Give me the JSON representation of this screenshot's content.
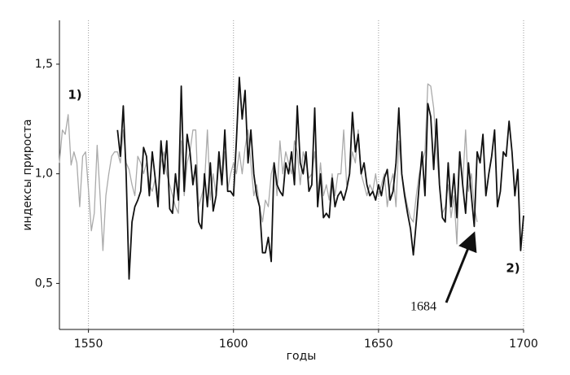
{
  "chart_data": {
    "type": "line",
    "x_label": "годы",
    "y_label": "индексы прироста",
    "x": [
      1540,
      1541,
      1542,
      1543,
      1544,
      1545,
      1546,
      1547,
      1548,
      1549,
      1550,
      1551,
      1552,
      1553,
      1554,
      1555,
      1556,
      1557,
      1558,
      1559,
      1560,
      1561,
      1562,
      1563,
      1564,
      1565,
      1566,
      1567,
      1568,
      1569,
      1570,
      1571,
      1572,
      1573,
      1574,
      1575,
      1576,
      1577,
      1578,
      1579,
      1580,
      1581,
      1582,
      1583,
      1584,
      1585,
      1586,
      1587,
      1588,
      1589,
      1590,
      1591,
      1592,
      1593,
      1594,
      1595,
      1596,
      1597,
      1598,
      1599,
      1600,
      1601,
      1602,
      1603,
      1604,
      1605,
      1606,
      1607,
      1608,
      1609,
      1610,
      1611,
      1612,
      1613,
      1614,
      1615,
      1616,
      1617,
      1618,
      1619,
      1620,
      1621,
      1622,
      1623,
      1624,
      1625,
      1626,
      1627,
      1628,
      1629,
      1630,
      1631,
      1632,
      1633,
      1634,
      1635,
      1636,
      1637,
      1638,
      1639,
      1640,
      1641,
      1642,
      1643,
      1644,
      1645,
      1646,
      1647,
      1648,
      1649,
      1650,
      1651,
      1652,
      1653,
      1654,
      1655,
      1656,
      1657,
      1658,
      1659,
      1660,
      1661,
      1662,
      1663,
      1664,
      1665,
      1666,
      1667,
      1668,
      1669,
      1670,
      1671,
      1672,
      1673,
      1674,
      1675,
      1676,
      1677,
      1678,
      1679,
      1680,
      1681,
      1682,
      1683,
      1684,
      1685,
      1686,
      1687,
      1688,
      1689,
      1690,
      1691,
      1692,
      1693,
      1694,
      1695,
      1696,
      1697,
      1698,
      1699,
      1700
    ],
    "series": [
      {
        "color": "#aaaaaa",
        "values": [
          1.05,
          1.2,
          1.18,
          1.27,
          1.04,
          1.1,
          1.05,
          0.85,
          1.08,
          1.1,
          0.93,
          0.74,
          0.82,
          1.13,
          0.9,
          0.65,
          0.9,
          1.0,
          1.08,
          1.1,
          1.1,
          1.05,
          1.2,
          1.05,
          1.02,
          0.95,
          0.9,
          1.08,
          1.05,
          1.0,
          1.05,
          0.95,
          0.92,
          0.98,
          0.9,
          1.05,
          1.1,
          1.0,
          0.95,
          0.9,
          0.85,
          0.82,
          1.15,
          0.9,
          1.05,
          1.1,
          1.2,
          1.2,
          0.85,
          0.9,
          0.95,
          1.2,
          0.88,
          1.0,
          0.9,
          1.05,
          0.95,
          1.1,
          0.93,
          1.0,
          1.05,
          1.0,
          1.1,
          1.0,
          1.12,
          1.2,
          1.05,
          0.9,
          0.95,
          0.85,
          0.78,
          0.88,
          0.85,
          1.0,
          1.05,
          0.9,
          1.15,
          1.0,
          1.1,
          1.05,
          1.0,
          1.15,
          1.1,
          0.95,
          1.1,
          1.05,
          0.98,
          1.0,
          1.1,
          0.9,
          1.05,
          0.9,
          0.95,
          0.88,
          1.0,
          0.9,
          1.0,
          1.0,
          1.2,
          0.95,
          1.0,
          1.1,
          1.05,
          1.2,
          1.0,
          0.95,
          0.9,
          0.95,
          0.92,
          1.0,
          0.9,
          0.95,
          1.0,
          0.85,
          0.95,
          1.0,
          0.85,
          1.15,
          1.0,
          0.92,
          0.85,
          0.8,
          0.78,
          0.9,
          1.0,
          1.05,
          1.1,
          1.41,
          1.4,
          1.3,
          1.1,
          0.95,
          0.82,
          0.85,
          0.95,
          0.8,
          0.9,
          0.68,
          1.1,
          0.95,
          1.2,
          0.92,
          1.0,
          0.85,
          0.78,
          null,
          null,
          null,
          null,
          null,
          null,
          null,
          null,
          null,
          null,
          null,
          null,
          null,
          null,
          null,
          null
        ]
      },
      {
        "color": "#111111",
        "values": [
          null,
          null,
          null,
          null,
          null,
          null,
          null,
          null,
          null,
          null,
          null,
          null,
          null,
          null,
          null,
          null,
          null,
          null,
          null,
          null,
          1.2,
          1.08,
          1.31,
          1.0,
          0.52,
          0.78,
          0.85,
          0.88,
          0.92,
          1.12,
          1.08,
          0.9,
          1.1,
          0.98,
          0.85,
          1.15,
          1.0,
          1.15,
          0.84,
          0.82,
          1.0,
          0.88,
          1.4,
          0.92,
          1.18,
          1.1,
          0.95,
          1.04,
          0.78,
          0.75,
          1.0,
          0.85,
          1.05,
          0.83,
          0.9,
          1.1,
          0.95,
          1.2,
          0.92,
          0.92,
          0.9,
          1.15,
          1.44,
          1.25,
          1.38,
          1.05,
          1.2,
          1.0,
          0.9,
          0.85,
          0.64,
          0.64,
          0.71,
          0.6,
          1.05,
          0.95,
          0.92,
          0.9,
          1.05,
          1.0,
          1.1,
          0.95,
          1.31,
          1.05,
          1.0,
          1.1,
          0.92,
          0.95,
          1.3,
          0.85,
          1.0,
          0.8,
          0.82,
          0.8,
          0.98,
          0.85,
          0.9,
          0.92,
          0.88,
          0.93,
          1.0,
          1.28,
          1.1,
          1.18,
          1.0,
          1.05,
          0.95,
          0.9,
          0.92,
          0.88,
          0.95,
          0.9,
          0.98,
          1.02,
          0.88,
          0.92,
          1.05,
          1.3,
          1.0,
          0.9,
          0.82,
          0.75,
          0.63,
          0.78,
          0.95,
          1.1,
          0.9,
          1.32,
          1.26,
          1.02,
          1.25,
          0.95,
          0.8,
          0.78,
          1.05,
          0.85,
          1.0,
          0.8,
          1.1,
          0.95,
          0.82,
          1.05,
          0.9,
          0.76,
          1.1,
          1.05,
          1.18,
          0.9,
          1.0,
          1.08,
          1.2,
          0.85,
          0.92,
          1.1,
          1.08,
          1.24,
          1.1,
          0.9,
          1.02,
          0.65,
          0.81
        ]
      }
    ],
    "xlim": [
      1540,
      1700
    ],
    "xticks": [
      1550,
      1600,
      1650,
      1700
    ],
    "ylim": [
      0.29,
      1.7
    ],
    "yticks": [
      {
        "value": 0.5,
        "label": "0,5"
      },
      {
        "value": 1.0,
        "label": "1,0"
      },
      {
        "value": 1.5,
        "label": "1,5"
      }
    ],
    "grid": true,
    "annotations": [
      "1)",
      "2)",
      "1684"
    ]
  }
}
